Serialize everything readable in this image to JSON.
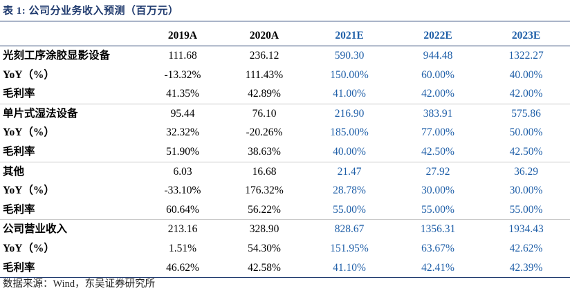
{
  "title": "表 1:  公司分业务收入预测（百万元）",
  "columns": [
    "",
    "2019A",
    "2020A",
    "2021E",
    "2022E",
    "2023E"
  ],
  "rows": [
    {
      "label": "光刻工序涂胶显影设备",
      "values": [
        "111.68",
        "236.12",
        "590.30",
        "944.48",
        "1322.27"
      ]
    },
    {
      "label": "YoY（%）",
      "values": [
        "-13.32%",
        "111.43%",
        "150.00%",
        "60.00%",
        "40.00%"
      ]
    },
    {
      "label": "毛利率",
      "values": [
        "41.35%",
        "42.89%",
        "41.00%",
        "42.00%",
        "42.00%"
      ]
    },
    {
      "label": "单片式湿法设备",
      "values": [
        "95.44",
        "76.10",
        "216.90",
        "383.91",
        "575.86"
      ]
    },
    {
      "label": "YoY（%）",
      "values": [
        "32.32%",
        "-20.26%",
        "185.00%",
        "77.00%",
        "50.00%"
      ]
    },
    {
      "label": "毛利率",
      "values": [
        "51.90%",
        "38.63%",
        "40.00%",
        "42.50%",
        "42.50%"
      ]
    },
    {
      "label": "其他",
      "values": [
        "6.03",
        "16.68",
        "21.47",
        "27.92",
        "36.29"
      ]
    },
    {
      "label": "YoY（%）",
      "values": [
        "-33.10%",
        "176.32%",
        "28.78%",
        "30.00%",
        "30.00%"
      ]
    },
    {
      "label": "毛利率",
      "values": [
        "60.64%",
        "56.22%",
        "55.00%",
        "55.00%",
        "55.00%"
      ]
    },
    {
      "label": "公司营业收入",
      "values": [
        "213.16",
        "328.90",
        "828.67",
        "1356.31",
        "1934.43"
      ]
    },
    {
      "label": "YoY（%）",
      "values": [
        "1.51%",
        "54.30%",
        "151.95%",
        "63.67%",
        "42.62%"
      ]
    },
    {
      "label": "毛利率",
      "values": [
        "46.62%",
        "42.58%",
        "41.10%",
        "42.41%",
        "42.39%"
      ]
    }
  ],
  "footer": "数据来源：Wind，东吴证券研究所",
  "colors": {
    "estimate": "#1f5fa8",
    "title": "#1f3a6e"
  }
}
